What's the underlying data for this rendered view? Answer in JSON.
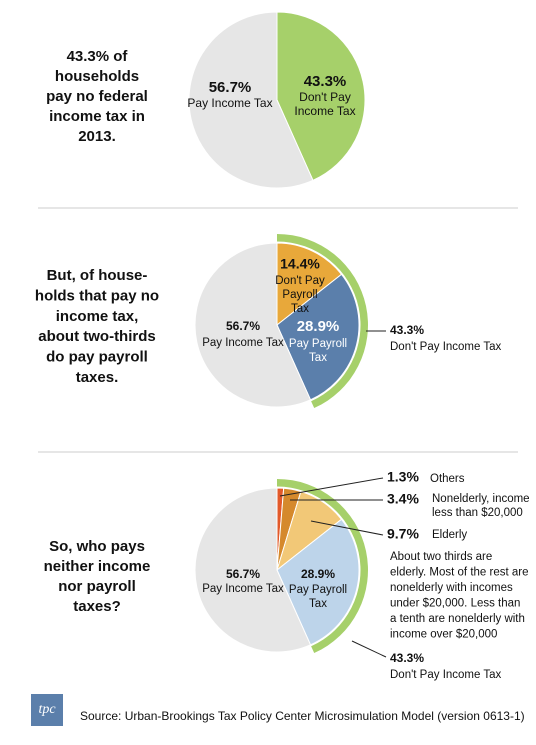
{
  "chart_data": [
    {
      "type": "pie",
      "headline": [
        "43.3% of",
        "households",
        "pay no federal",
        "income tax in",
        "2013."
      ],
      "values": [
        43.3,
        56.7
      ],
      "value_labels": [
        "43.3%",
        "56.7%"
      ],
      "labels": [
        [
          "Don't Pay",
          "Income Tax"
        ],
        [
          "Pay Income Tax"
        ]
      ],
      "colors": [
        "#a6d06a",
        "#e6e6e6"
      ]
    },
    {
      "type": "pie",
      "headline": [
        "But, of house-",
        "holds that pay no",
        "income tax,",
        "about two-thirds",
        "do pay payroll",
        "taxes."
      ],
      "values": [
        14.4,
        28.9,
        56.7
      ],
      "value_labels": [
        "14.4%",
        "28.9%",
        "56.7%"
      ],
      "labels": [
        [
          "Don't Pay",
          "Payroll",
          "Tax"
        ],
        [
          "Pay Payroll",
          "Tax"
        ],
        [
          "Pay Income Tax"
        ]
      ],
      "colors": [
        "#e8a83a",
        "#5b7fab",
        "#e6e6e6"
      ],
      "outer_ring": {
        "value": 43.3,
        "value_label": "43.3%",
        "label": [
          "Don't Pay Income Tax"
        ],
        "color": "#a6d06a"
      }
    },
    {
      "type": "pie",
      "headline": [
        "So, who pays",
        "neither income",
        "nor payroll",
        "taxes?"
      ],
      "values": [
        1.3,
        3.4,
        9.7,
        28.9,
        56.7
      ],
      "value_labels": [
        "1.3%",
        "3.4%",
        "9.7%",
        "28.9%",
        "56.7%"
      ],
      "labels": [
        [
          "Others"
        ],
        [
          "Nonelderly, income",
          "less than $20,000"
        ],
        [
          "Elderly"
        ],
        [
          "Pay Payroll",
          "Tax"
        ],
        [
          "Pay Income Tax"
        ]
      ],
      "colors": [
        "#e2592a",
        "#d5892c",
        "#f2c877",
        "#bdd4ea",
        "#e6e6e6"
      ],
      "outer_ring": {
        "value": 43.3,
        "value_label": "43.3%",
        "label": [
          "Don't Pay Income Tax"
        ],
        "color": "#a6d06a"
      },
      "note": [
        "About two thirds are",
        "elderly. Most of the rest are",
        "nonelderly with incomes",
        "under $20,000. Less than",
        "a tenth are nonelderly with",
        "income over $20,000"
      ]
    }
  ],
  "logo": "tpc",
  "source": "Source: Urban-Brookings Tax Policy Center Microsimulation Model (version 0613-1)"
}
